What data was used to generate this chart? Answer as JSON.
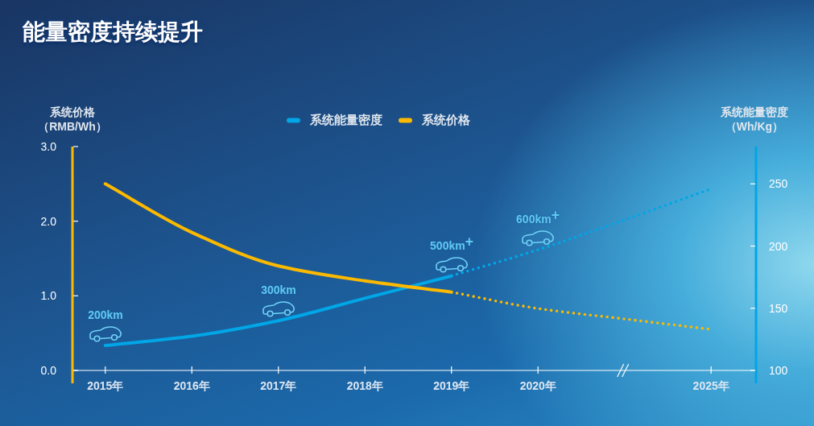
{
  "chart_data": {
    "type": "line",
    "title": "能量密度持续提升",
    "ylabel": "系统价格（RMB/Wh）",
    "y2label": "系统能量密度（Wh/Kg）",
    "categories": [
      "2015年",
      "2016年",
      "2017年",
      "2018年",
      "2019年",
      "2020年",
      null,
      "2025年"
    ],
    "series": [
      {
        "name": "系统能量密度",
        "color": "#00a6e6",
        "axis": "y2",
        "line_style": "solid",
        "values": [
          120,
          127.5,
          140,
          158,
          176,
          null,
          null,
          null
        ]
      },
      {
        "color": "#00a6e6",
        "axis": "y2",
        "line_style": "dotted",
        "values": [
          null,
          null,
          null,
          null,
          176,
          197,
          221,
          246
        ]
      },
      {
        "name": "系统价格",
        "color": "#fbb900",
        "line_style": "solid",
        "values": [
          2.5,
          1.85,
          1.4,
          1.2,
          1.05,
          null,
          null,
          null
        ]
      },
      {
        "color": "#fbb900",
        "line_style": "dotted",
        "values": [
          null,
          null,
          null,
          null,
          1.05,
          0.83,
          0.69,
          0.55
        ]
      }
    ],
    "ylim": [
      0,
      3
    ],
    "yticks": [
      {
        "value": 0,
        "label": "0.0"
      },
      {
        "value": 1,
        "label": "1.0"
      },
      {
        "value": 2,
        "label": "2.0"
      },
      {
        "value": 3,
        "label": "3.0"
      }
    ],
    "y2lim": [
      100,
      280
    ],
    "y2ticks": [
      100,
      150,
      200,
      250
    ],
    "legend": "top",
    "annotations": [
      "200km",
      "300km",
      "500km$^{+}$",
      "600km$^{+}$"
    ]
  }
}
